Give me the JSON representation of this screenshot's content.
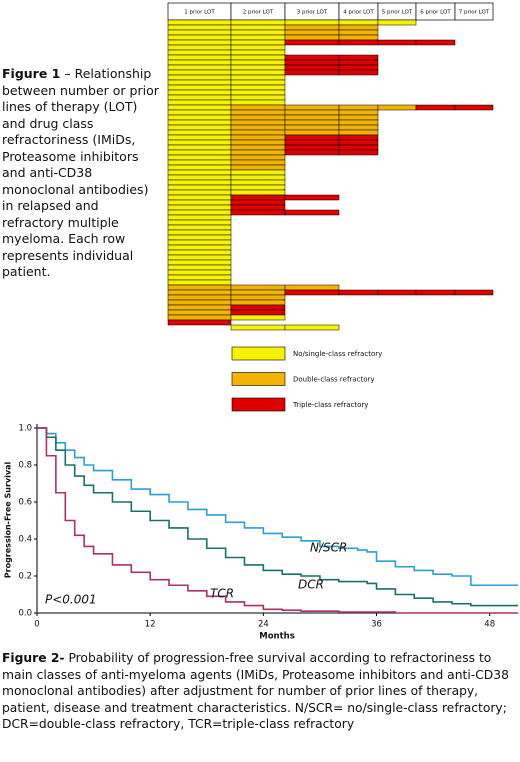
{
  "figure1": {
    "caption_label": "Figure 1",
    "caption_text": " – Relationship between number or prior lines of therapy (LOT) and drug class refractoriness (IMiDs, Proteasome inhibitors and anti-CD38 monoclonal antibodies) in relapsed and refractory multiple myeloma. Each row represents individual patient.",
    "columns": [
      "1 prior LOT",
      "2 prior LOT",
      "3 prior LOT",
      "4 prior LOT",
      "5 prior LOT",
      "6 prior LOT",
      "7 prior LOT"
    ],
    "legend": [
      {
        "code": "Y",
        "label": "No/single-class refractory",
        "color": "#f7f200"
      },
      {
        "code": "O",
        "label": "Double-class refractory",
        "color": "#f2b400"
      },
      {
        "code": "R",
        "label": "Triple-class refractory",
        "color": "#e00000"
      }
    ],
    "rows": [
      "YYYYY",
      "YYOO",
      "YYOO",
      "YYOO",
      "YYRRRR",
      "YY",
      "YY",
      "YYRR",
      "YYRR",
      "YYRR",
      "YYRR",
      "YY",
      "YY",
      "YY",
      "YY",
      "YY",
      "YY",
      "YOOOORR",
      "YOOO",
      "YOOO",
      "YOOO",
      "YOOO",
      "YOOO",
      "YORR",
      "YORR",
      "YORR",
      "YORR",
      "YO",
      "YO",
      "YO",
      "YY",
      "YY",
      "YY",
      "YY",
      "YY",
      "YRR",
      "YR",
      "YR",
      "YRR",
      "Y",
      "Y",
      "Y",
      "Y",
      "Y",
      "Y",
      "Y",
      "Y",
      "Y",
      "Y",
      "Y",
      "Y",
      "Y",
      "Y",
      "OOO",
      "OORRRRR",
      "OO",
      "OO",
      "OR",
      "OR",
      "OY",
      "R",
      "-YY"
    ]
  },
  "chart_data": {
    "type": "line",
    "xlabel": "Months",
    "ylabel": "Progression-Free Survival",
    "annotation": "P<0.001",
    "x": [
      0,
      1,
      2,
      3,
      4,
      5,
      6,
      8,
      10,
      12,
      14,
      16,
      18,
      20,
      22,
      24,
      26,
      28,
      30,
      32,
      34,
      35,
      36,
      38,
      40,
      42,
      44,
      46,
      48,
      51
    ],
    "series": [
      {
        "name": "N/SCR",
        "color": "#2a9ed8",
        "values": [
          1,
          0.97,
          0.92,
          0.88,
          0.84,
          0.8,
          0.77,
          0.72,
          0.67,
          0.64,
          0.6,
          0.56,
          0.53,
          0.49,
          0.46,
          0.43,
          0.41,
          0.39,
          0.36,
          0.35,
          0.34,
          0.33,
          0.28,
          0.25,
          0.23,
          0.21,
          0.2,
          0.15,
          0.15,
          0.15
        ]
      },
      {
        "name": "DCR",
        "color": "#17706b",
        "values": [
          1,
          0.95,
          0.88,
          0.8,
          0.74,
          0.69,
          0.65,
          0.6,
          0.55,
          0.5,
          0.46,
          0.4,
          0.35,
          0.3,
          0.26,
          0.23,
          0.21,
          0.2,
          0.18,
          0.17,
          0.17,
          0.16,
          0.13,
          0.1,
          0.08,
          0.06,
          0.05,
          0.04,
          0.04,
          0.04
        ]
      },
      {
        "name": "TCR",
        "color": "#ad2f6c",
        "values": [
          1,
          0.85,
          0.65,
          0.5,
          0.42,
          0.36,
          0.32,
          0.26,
          0.22,
          0.18,
          0.15,
          0.12,
          0.09,
          0.06,
          0.04,
          0.02,
          0.015,
          0.01,
          0.01,
          0.005,
          0.005,
          0.005,
          0.005,
          0,
          0,
          0,
          0,
          0,
          0,
          0
        ]
      }
    ],
    "xlim": [
      0,
      51
    ],
    "ylim": [
      0,
      1
    ],
    "xticks": [
      0,
      12,
      24,
      36,
      48
    ],
    "yticks": [
      {
        "value": 0,
        "label": "0.0"
      },
      {
        "value": 0.2,
        "label": "0.2"
      },
      {
        "value": 0.4,
        "label": "0.4"
      },
      {
        "value": 0.6,
        "label": "0.6"
      },
      {
        "value": 0.8,
        "label": "0.8"
      },
      {
        "value": 1,
        "label": "1.0"
      }
    ]
  },
  "figure2": {
    "caption_label": "Figure 2-",
    "caption_text": " Probability of progression-free survival according to refractoriness to main classes of anti-myeloma agents (IMiDs, Proteasome inhibitors and anti-CD38 monoclonal antibodies) after adjustment for number of prior lines of therapy, patient, disease and treatment characteristics. N/SCR= no/single-class refractory; DCR=double-class refractory, TCR=triple-class refractory"
  }
}
